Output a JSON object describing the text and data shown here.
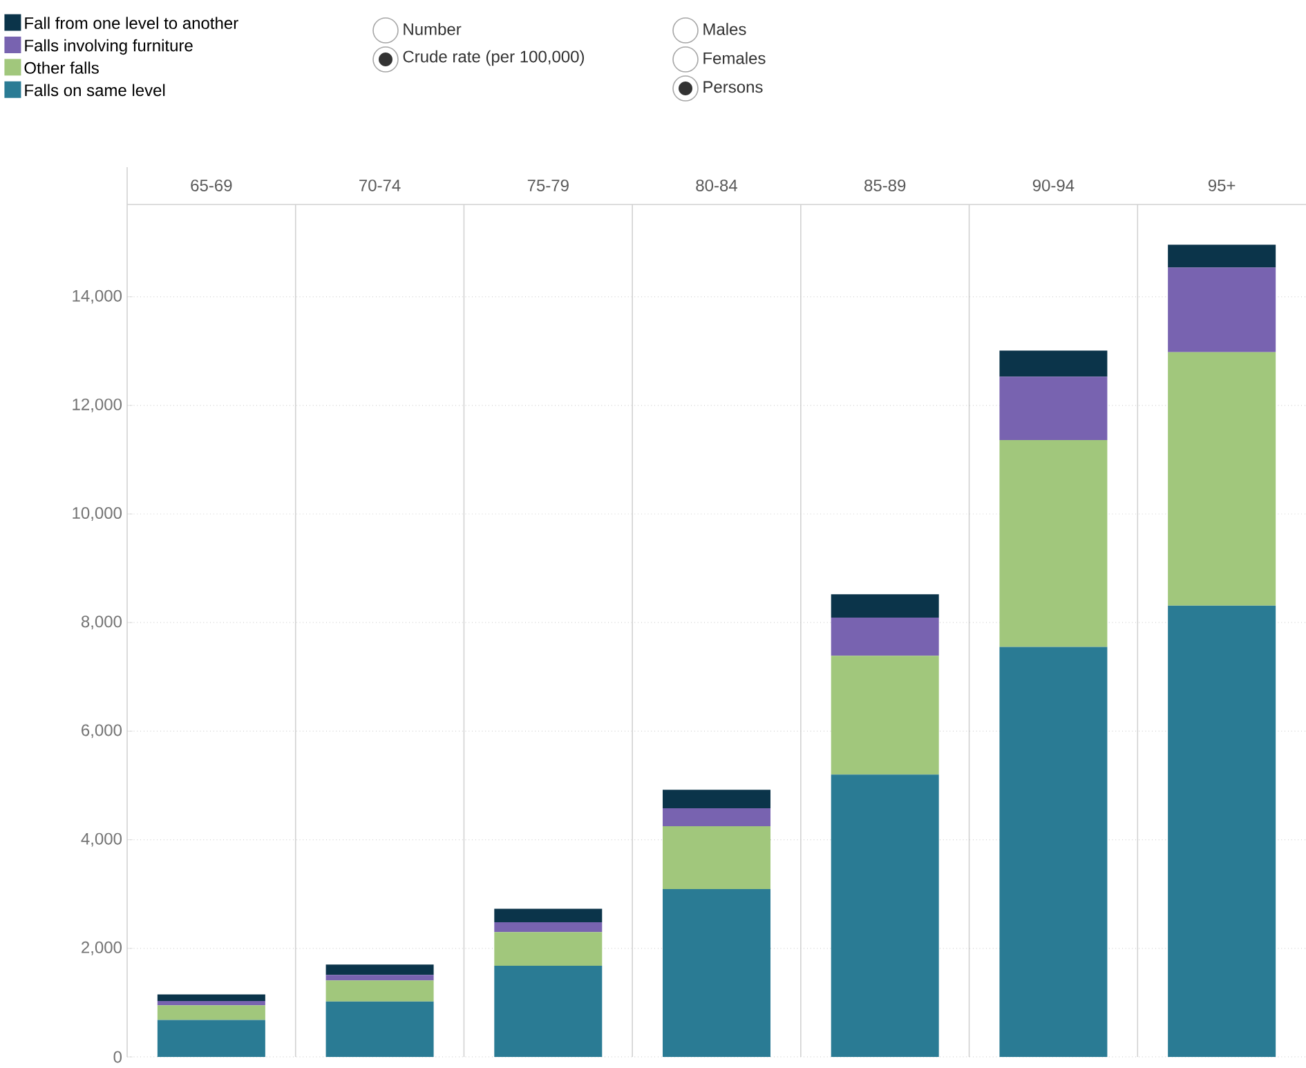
{
  "chart_data": {
    "type": "bar",
    "stacked": true,
    "categories": [
      "65-69",
      "70-74",
      "75-79",
      "80-84",
      "85-89",
      "90-94",
      "95+"
    ],
    "series": [
      {
        "name": "Falls on same level",
        "color": "#2a7b94",
        "values": [
          680,
          1020,
          1680,
          3090,
          5200,
          7550,
          8310
        ]
      },
      {
        "name": "Other falls",
        "color": "#a1c77c",
        "values": [
          270,
          390,
          620,
          1160,
          2190,
          3810,
          4670
        ]
      },
      {
        "name": "Falls involving furniture",
        "color": "#7863b0",
        "values": [
          80,
          100,
          180,
          330,
          700,
          1170,
          1560
        ]
      },
      {
        "name": "Fall from one level to another",
        "color": "#0b344a",
        "values": [
          120,
          190,
          250,
          340,
          430,
          480,
          420
        ]
      }
    ],
    "ylim": [
      0,
      15700
    ],
    "yticks": [
      0,
      {
        "value": 2000,
        "label": "2,000"
      },
      {
        "value": 4000,
        "label": "4,000"
      },
      {
        "value": 6000,
        "label": "6,000"
      },
      {
        "value": 8000,
        "label": "8,000"
      },
      {
        "value": 10000,
        "label": "10,000"
      },
      {
        "value": 12000,
        "label": "12,000"
      },
      {
        "value": 14000,
        "label": "14,000"
      }
    ],
    "grid": "y",
    "legend": "top left",
    "annotations": [
      "Number",
      "Crude rate (per 100,000)",
      "Males",
      "Females",
      "Persons"
    ]
  }
}
